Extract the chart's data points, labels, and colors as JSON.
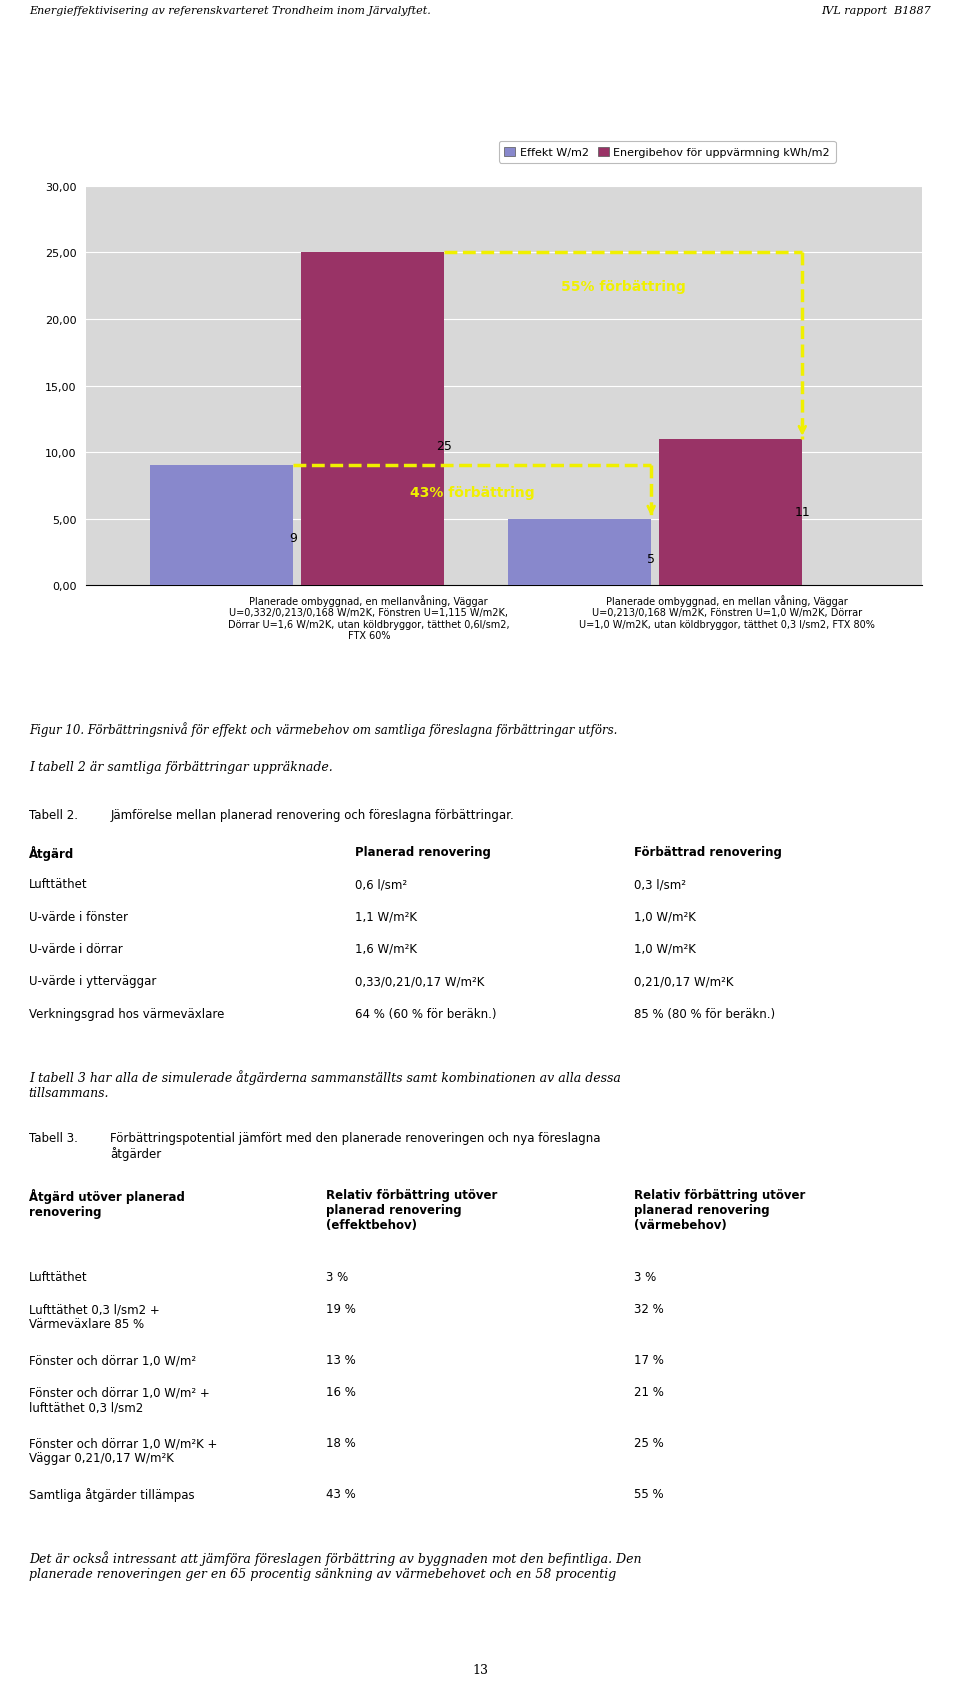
{
  "header_left": "Energieffektivisering av referenskvarteret Trondheim inom Järvalyftet.",
  "header_right": "IVL rapport  B1887",
  "legend_items": [
    "Effekt W/m2",
    "Energibehov för uppvärmning kWh/m2"
  ],
  "legend_colors": [
    "#8888cc",
    "#993366"
  ],
  "bar_groups": [
    {
      "label": "Planerade ombyggnad, en mellanvåning, Väggar\nU=0,332/0,213/0,168 W/m2K, Fönstren U=1,115 W/m2K,\nDörrar U=1,6 W/m2K, utan köldbryggor, tätthet 0,6l/sm2,\nFTX 60%",
      "values": [
        9,
        25
      ],
      "colors": [
        "#8888cc",
        "#993366"
      ]
    },
    {
      "label": "Planerade ombyggnad, en mellan våning, Väggar\nU=0,213/0,168 W/m2K, Fönstren U=1,0 W/m2K, Dörrar\nU=1,0 W/m2K, utan köldbryggor, tätthet 0,3 l/sm2, FTX 80%",
      "values": [
        5,
        11
      ],
      "colors": [
        "#8888cc",
        "#993366"
      ]
    }
  ],
  "annotation_55": "55% förbättring",
  "annotation_43": "43% förbättring",
  "ylim": [
    0,
    30
  ],
  "ytick_labels": [
    "0,00",
    "5,00",
    "10,00",
    "15,00",
    "20,00",
    "25,00",
    "30,00"
  ],
  "bg_color": "#d8d8d8",
  "figur_caption": "Figur 10. Förbättringsnivå för effekt och värmebehov om samtliga föreslagna förbättringar utförs.",
  "tabell2_intro": "I tabell 2 är samtliga förbättringar uppräknade.",
  "tabell2_title": "Tabell 2.",
  "tabell2_desc": "Jämförelse mellan planerad renovering och föreslagna förbättringar.",
  "tabell2_headers": [
    "Åtgärd",
    "Planerad renovering",
    "Förbättrad renovering"
  ],
  "tabell2_rows": [
    [
      "Lufttäthet",
      "0,6 l/sm²",
      "0,3 l/sm²"
    ],
    [
      "U-värde i fönster",
      "1,1 W/m²K",
      "1,0 W/m²K"
    ],
    [
      "U-värde i dörrar",
      "1,6 W/m²K",
      "1,0 W/m²K"
    ],
    [
      "U-värde i ytterväggar",
      "0,33/0,21/0,17 W/m²K",
      "0,21/0,17 W/m²K"
    ],
    [
      "Verkningsgrad hos värmeväxlare",
      "64 % (60 % för beräkn.)",
      "85 % (80 % för beräkn.)"
    ]
  ],
  "tabell3_intro": "I tabell 3 har alla de simulerade åtgärderna sammanställts samt kombinationen av alla dessa\ntillsammans.",
  "tabell3_title": "Tabell 3.",
  "tabell3_desc": "Förbättringspotential jämfört med den planerade renoveringen och nya föreslagna\nåtgärder",
  "tabell3_headers": [
    "Åtgärd utöver planerad\nrenovering",
    "Relativ förbättring utöver\nplanerad renovering\n(effektbehov)",
    "Relativ förbättring utöver\nplanerad renovering\n(värmebehov)"
  ],
  "tabell3_rows": [
    [
      "Lufttäthet",
      "3 %",
      "3 %"
    ],
    [
      "Lufttäthet 0,3 l/sm2 +\nVärmeväxlare 85 %",
      "19 %",
      "32 %"
    ],
    [
      "Fönster och dörrar 1,0 W/m²",
      "13 %",
      "17 %"
    ],
    [
      "Fönster och dörrar 1,0 W/m² +\nlufttäthet 0,3 l/sm2",
      "16 %",
      "21 %"
    ],
    [
      "Fönster och dörrar 1,0 W/m²K +\nVäggar 0,21/0,17 W/m²K",
      "18 %",
      "25 %"
    ],
    [
      "Samtliga åtgärder tillämpas",
      "43 %",
      "55 %"
    ]
  ],
  "bottom_text": "Det är också intressant att jämföra föreslagen förbättring av byggnaden mot den befintliga. Den\nplanerade renoveringen ger en 65 procentig sänkning av värmebehovet och en 58 procentig",
  "page_number": "13"
}
